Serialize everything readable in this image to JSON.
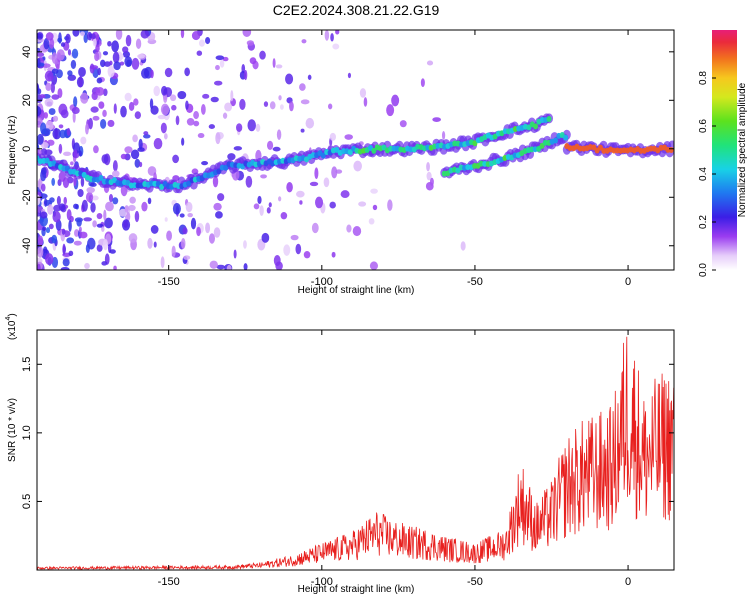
{
  "figure": {
    "title": "C2E2.2024.308.21.22.G19"
  },
  "chart_data": [
    {
      "type": "heatmap",
      "title": "C2E2.2024.308.21.22.G19",
      "xlabel": "Height of straight line (km)",
      "ylabel": "Frequency (Hz)",
      "xlim": [
        -193,
        15
      ],
      "ylim": [
        -50,
        49
      ],
      "xticks": [
        -150,
        -100,
        -50,
        0
      ],
      "yticks": [
        -40,
        -20,
        0,
        20,
        40
      ],
      "grid": false,
      "colorbar": {
        "label": "Normalized spectral amplitude",
        "range": [
          0,
          1
        ],
        "ticks": [
          "0.0",
          "0.2",
          "0.4",
          "0.6",
          "0.8"
        ]
      },
      "ridges": [
        {
          "points": [
            [
              -193,
              -4
            ],
            [
              -175,
              -12
            ],
            [
              -160,
              -15
            ],
            [
              -145,
              -15
            ],
            [
              -130,
              -7
            ],
            [
              -110,
              -5
            ],
            [
              -95,
              -1
            ],
            [
              -80,
              0
            ],
            [
              -70,
              0
            ],
            [
              -60,
              1
            ],
            [
              -50,
              3
            ],
            [
              -40,
              7
            ],
            [
              -30,
              10
            ],
            [
              -25,
              13
            ]
          ]
        },
        {
          "points": [
            [
              -60,
              -10
            ],
            [
              -50,
              -7
            ],
            [
              -40,
              -4
            ],
            [
              -30,
              0
            ],
            [
              -22,
              5
            ],
            [
              -20,
              5
            ]
          ]
        },
        {
          "points": [
            [
              -20,
              1
            ],
            [
              -10,
              0
            ],
            [
              0,
              -1
            ],
            [
              10,
              0
            ],
            [
              15,
              0
            ]
          ]
        }
      ]
    },
    {
      "type": "line",
      "xlabel": "Height of straight line (km)",
      "ylabel": "SNR (10 * v/v)",
      "scale_label": "(x10",
      "scale_exponent": "4",
      "xlim": [
        -193,
        15
      ],
      "ylim": [
        0,
        1.75
      ],
      "xticks": [
        -150,
        -100,
        -50,
        0
      ],
      "yticks": [
        0.5,
        1.0,
        1.5
      ],
      "color": "#e8201e",
      "envelope": [
        {
          "x": -193,
          "y": 0.02
        },
        {
          "x": -130,
          "y": 0.03
        },
        {
          "x": -120,
          "y": 0.05
        },
        {
          "x": -110,
          "y": 0.1
        },
        {
          "x": -100,
          "y": 0.18
        },
        {
          "x": -90,
          "y": 0.26
        },
        {
          "x": -82,
          "y": 0.4
        },
        {
          "x": -78,
          "y": 0.35
        },
        {
          "x": -72,
          "y": 0.3
        },
        {
          "x": -65,
          "y": 0.27
        },
        {
          "x": -60,
          "y": 0.23
        },
        {
          "x": -50,
          "y": 0.18
        },
        {
          "x": -40,
          "y": 0.28
        },
        {
          "x": -35,
          "y": 0.75
        },
        {
          "x": -30,
          "y": 0.45
        },
        {
          "x": -25,
          "y": 0.6
        },
        {
          "x": -20,
          "y": 0.9
        },
        {
          "x": -15,
          "y": 1.0
        },
        {
          "x": -10,
          "y": 1.05
        },
        {
          "x": -5,
          "y": 1.1
        },
        {
          "x": 0,
          "y": 1.75
        },
        {
          "x": 5,
          "y": 1.2
        },
        {
          "x": 10,
          "y": 1.3
        },
        {
          "x": 15,
          "y": 1.4
        }
      ]
    }
  ]
}
